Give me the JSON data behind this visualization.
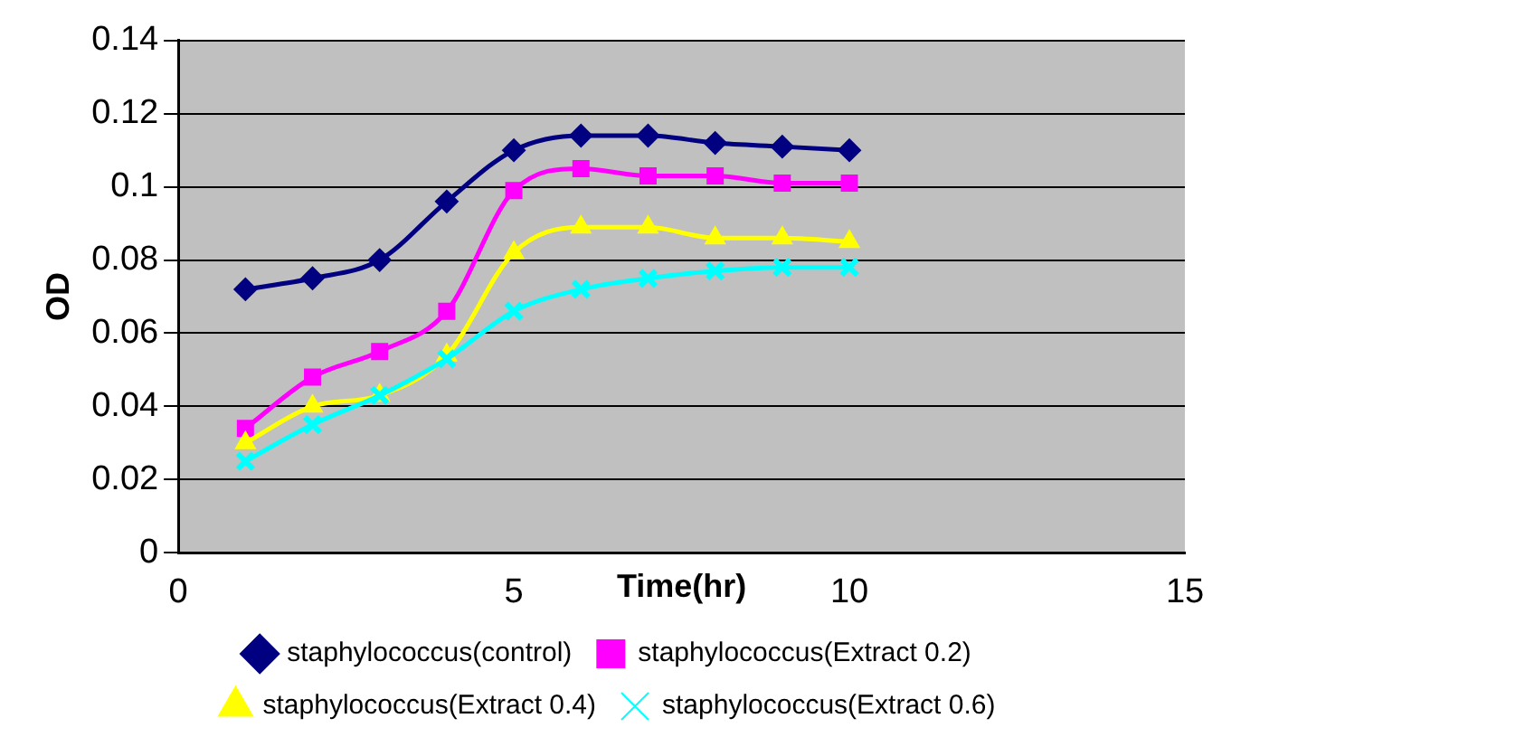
{
  "chart_data": {
    "type": "line",
    "xlabel": "Time(hr)",
    "ylabel": "OD",
    "x": [
      1,
      2,
      3,
      4,
      5,
      6,
      7,
      8,
      9,
      10
    ],
    "xlim": [
      0,
      15
    ],
    "xticks": [
      0,
      5,
      10,
      15
    ],
    "ylim": [
      0,
      0.14
    ],
    "yticks": [
      0,
      0.02,
      0.04,
      0.06,
      0.08,
      0.1,
      0.12,
      0.14
    ],
    "grid": "y",
    "legend": "bottom",
    "series": [
      {
        "name": "staphylococcus(control)",
        "color": "#000080",
        "marker": "diamond",
        "values": [
          0.072,
          0.075,
          0.08,
          0.096,
          0.11,
          0.114,
          0.114,
          0.112,
          0.111,
          0.11
        ]
      },
      {
        "name": "staphylococcus(Extract 0.2)",
        "color": "#ff00ff",
        "marker": "square",
        "values": [
          0.034,
          0.048,
          0.055,
          0.066,
          0.099,
          0.105,
          0.103,
          0.103,
          0.101,
          0.101
        ]
      },
      {
        "name": "staphylococcus(Extract 0.4)",
        "color": "#ffff00",
        "marker": "triangle",
        "values": [
          0.03,
          0.04,
          0.043,
          0.054,
          0.082,
          0.089,
          0.089,
          0.086,
          0.086,
          0.085
        ]
      },
      {
        "name": "staphylococcus(Extract 0.6)",
        "color": "#00ffff",
        "marker": "cross",
        "values": [
          0.025,
          0.035,
          0.043,
          0.053,
          0.066,
          0.072,
          0.075,
          0.077,
          0.078,
          0.078
        ]
      }
    ]
  }
}
